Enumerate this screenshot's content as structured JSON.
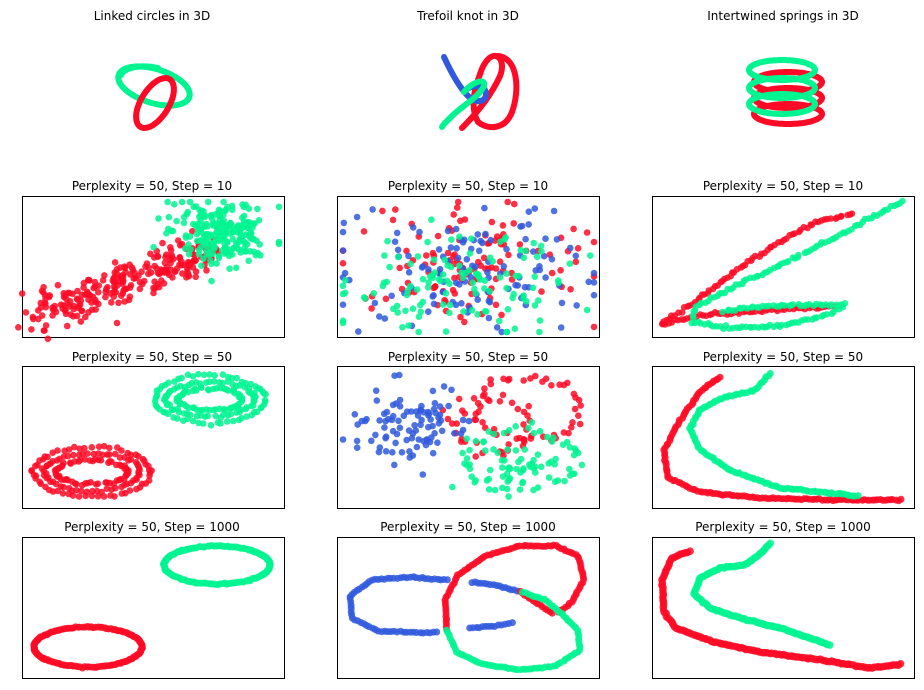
{
  "colors": {
    "red": "#ff0a26",
    "green": "#00f590",
    "blue": "#3059dd"
  },
  "chart_data": [
    {
      "type": "scatter",
      "title": "Linked circles in 3D",
      "row": 0,
      "col": 0,
      "axes": "off",
      "series_colors": [
        "#00f590",
        "#ff0a26"
      ]
    },
    {
      "type": "scatter",
      "title": "Trefoil knot in 3D",
      "row": 0,
      "col": 1,
      "axes": "off",
      "series_colors": [
        "#3059dd",
        "#00f590",
        "#ff0a26"
      ]
    },
    {
      "type": "scatter",
      "title": "Intertwined springs in 3D",
      "row": 0,
      "col": 2,
      "axes": "off",
      "series_colors": [
        "#00f590",
        "#ff0a26"
      ]
    },
    {
      "type": "scatter",
      "title": "Perplexity = 50, Step = 10",
      "row": 1,
      "col": 0,
      "perplexity": 50,
      "step": 10,
      "series_colors": [
        "#ff0a26",
        "#00f590"
      ],
      "ticks": "none"
    },
    {
      "type": "scatter",
      "title": "Perplexity = 50, Step = 10",
      "row": 1,
      "col": 1,
      "perplexity": 50,
      "step": 10,
      "series_colors": [
        "#ff0a26",
        "#3059dd",
        "#00f590"
      ],
      "ticks": "none"
    },
    {
      "type": "scatter",
      "title": "Perplexity = 50, Step = 10",
      "row": 1,
      "col": 2,
      "perplexity": 50,
      "step": 10,
      "series_colors": [
        "#ff0a26",
        "#00f590"
      ],
      "ticks": "none"
    },
    {
      "type": "scatter",
      "title": "Perplexity = 50, Step = 50",
      "row": 2,
      "col": 0,
      "perplexity": 50,
      "step": 50,
      "series_colors": [
        "#00f590",
        "#ff0a26"
      ],
      "ticks": "none"
    },
    {
      "type": "scatter",
      "title": "Perplexity = 50, Step = 50",
      "row": 2,
      "col": 1,
      "perplexity": 50,
      "step": 50,
      "series_colors": [
        "#3059dd",
        "#ff0a26",
        "#00f590"
      ],
      "ticks": "none"
    },
    {
      "type": "scatter",
      "title": "Perplexity = 50, Step = 50",
      "row": 2,
      "col": 2,
      "perplexity": 50,
      "step": 50,
      "series_colors": [
        "#ff0a26",
        "#00f590"
      ],
      "ticks": "none"
    },
    {
      "type": "scatter",
      "title": "Perplexity = 50, Step = 1000",
      "row": 3,
      "col": 0,
      "perplexity": 50,
      "step": 1000,
      "series_colors": [
        "#00f590",
        "#ff0a26"
      ],
      "ticks": "none"
    },
    {
      "type": "scatter",
      "title": "Perplexity = 50, Step = 1000",
      "row": 3,
      "col": 1,
      "perplexity": 50,
      "step": 1000,
      "series_colors": [
        "#3059dd",
        "#ff0a26",
        "#00f590"
      ],
      "ticks": "none"
    },
    {
      "type": "scatter",
      "title": "Perplexity = 50, Step = 1000",
      "row": 3,
      "col": 2,
      "perplexity": 50,
      "step": 1000,
      "series_colors": [
        "#ff0a26",
        "#00f590"
      ],
      "ticks": "none"
    }
  ]
}
